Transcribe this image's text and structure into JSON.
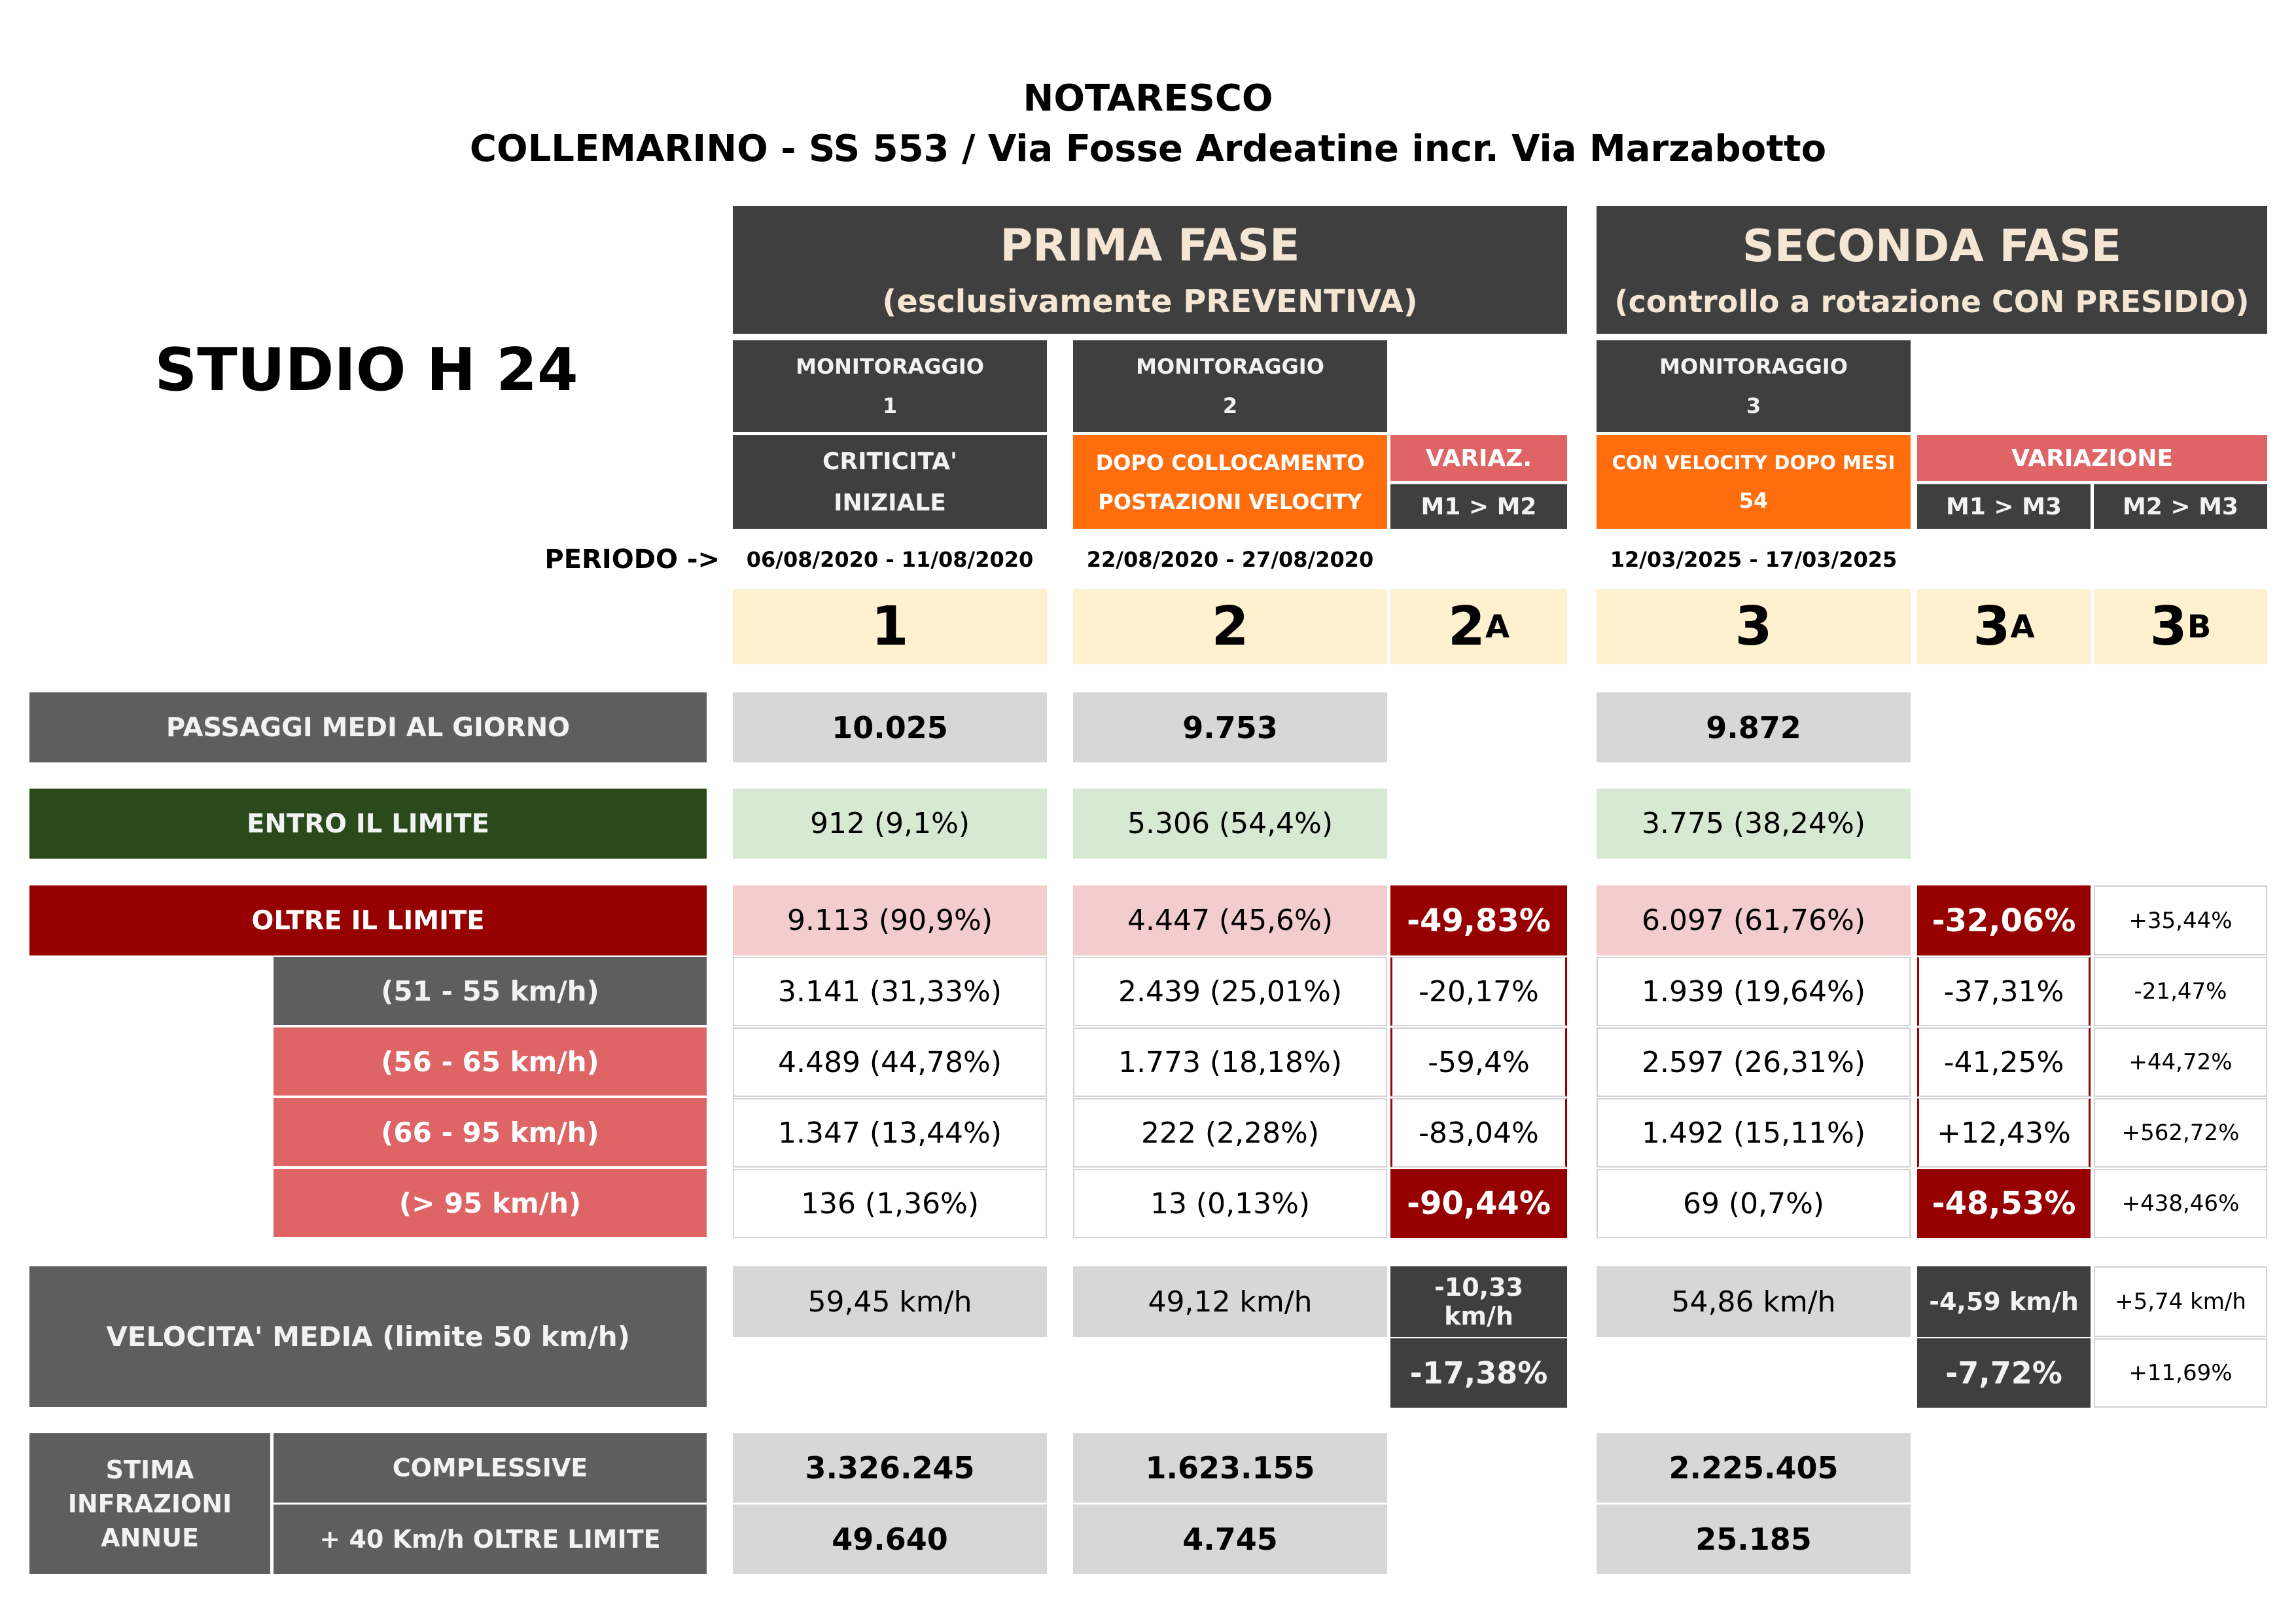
{
  "title_line1": "NOTARESCO",
  "title_line2": "COLLEMARINO - SS 553 / Via Fosse Ardeatine incr. Via Marzabotto",
  "studio": "STUDIO H 24",
  "periodo_label": "PERIODO ->",
  "prima_fase": {
    "title": "PRIMA FASE",
    "subtitle": "(esclusivamente PREVENTIVA)"
  },
  "seconda_fase": {
    "title": "SECONDA FASE",
    "subtitle": "(controllo a rotazione CON PRESIDIO)"
  },
  "monitoraggio": {
    "m1": {
      "label": "MONITORAGGIO",
      "num": "1",
      "desc1": "CRITICITA'",
      "desc2": "INIZIALE",
      "period": "06/08/2020 - 11/08/2020",
      "col": "1"
    },
    "m2": {
      "label": "MONITORAGGIO",
      "num": "2",
      "desc1": "DOPO COLLOCAMENTO",
      "desc2": "POSTAZIONI VELOCITY",
      "period": "22/08/2020 - 27/08/2020",
      "col": "2"
    },
    "m3": {
      "label": "MONITORAGGIO",
      "num": "3",
      "desc1": "CON VELOCITY DOPO MESI",
      "desc2": "54",
      "period": "12/03/2025 - 17/03/2025",
      "col": "3"
    }
  },
  "variaz": {
    "label": "VARIAZ.",
    "sub": "M1 > M2",
    "col": "2",
    "col_sub": "A"
  },
  "variazione": {
    "label": "VARIAZIONE",
    "sub_a": "M1 > M3",
    "sub_b": "M2 > M3",
    "col_a": "3",
    "col_a_sub": "A",
    "col_b": "3",
    "col_b_sub": "B"
  },
  "rows": {
    "passaggi": {
      "label": "PASSAGGI MEDI AL GIORNO",
      "m1": "10.025",
      "m2": "9.753",
      "m3": "9.872"
    },
    "entro": {
      "label": "ENTRO IL LIMITE",
      "m1": "912 (9,1%)",
      "m2": "5.306 (54,4%)",
      "m3": "3.775 (38,24%)"
    },
    "oltre": {
      "label": "OLTRE IL LIMITE",
      "m1": "9.113 (90,9%)",
      "m2": "4.447 (45,6%)",
      "v12": "-49,83%",
      "m3": "6.097 (61,76%)",
      "v13": "-32,06%",
      "v23": "+35,44%"
    },
    "r51": {
      "label": "(51 - 55 km/h)",
      "m1": "3.141 (31,33%)",
      "m2": "2.439 (25,01%)",
      "v12": "-20,17%",
      "m3": "1.939 (19,64%)",
      "v13": "-37,31%",
      "v23": "-21,47%"
    },
    "r56": {
      "label": "(56 - 65 km/h)",
      "m1": "4.489 (44,78%)",
      "m2": "1.773 (18,18%)",
      "v12": "-59,4%",
      "m3": "2.597 (26,31%)",
      "v13": "-41,25%",
      "v23": "+44,72%"
    },
    "r66": {
      "label": "(66 - 95 km/h)",
      "m1": "1.347 (13,44%)",
      "m2": "222 (2,28%)",
      "v12": "-83,04%",
      "m3": "1.492 (15,11%)",
      "v13": "+12,43%",
      "v23": "+562,72%"
    },
    "r95": {
      "label": "(> 95 km/h)",
      "m1": "136 (1,36%)",
      "m2": "13 (0,13%)",
      "v12": "-90,44%",
      "m3": "69 (0,7%)",
      "v13": "-48,53%",
      "v23": "+438,46%"
    },
    "velocita": {
      "label": "VELOCITA' MEDIA (limite 50 km/h)",
      "m1": "59,45 km/h",
      "m2": "49,12 km/h",
      "v12_kmh1": "-10,33",
      "v12_kmh2": "km/h",
      "v12_pct": "-17,38%",
      "m3": "54,86 km/h",
      "v13_kmh": "-4,59 km/h",
      "v13_pct": "-7,72%",
      "v23_kmh": "+5,74 km/h",
      "v23_pct": "+11,69%"
    },
    "stima": {
      "label1": "STIMA",
      "label2": "INFRAZIONI",
      "label3": "ANNUE",
      "complessive": "COMPLESSIVE",
      "oltre40": "+ 40 Km/h OLTRE LIMITE",
      "m1_c": "3.326.245",
      "m2_c": "1.623.155",
      "m3_c": "2.225.405",
      "m1_o": "49.640",
      "m2_o": "4.745",
      "m3_o": "25.185"
    }
  }
}
